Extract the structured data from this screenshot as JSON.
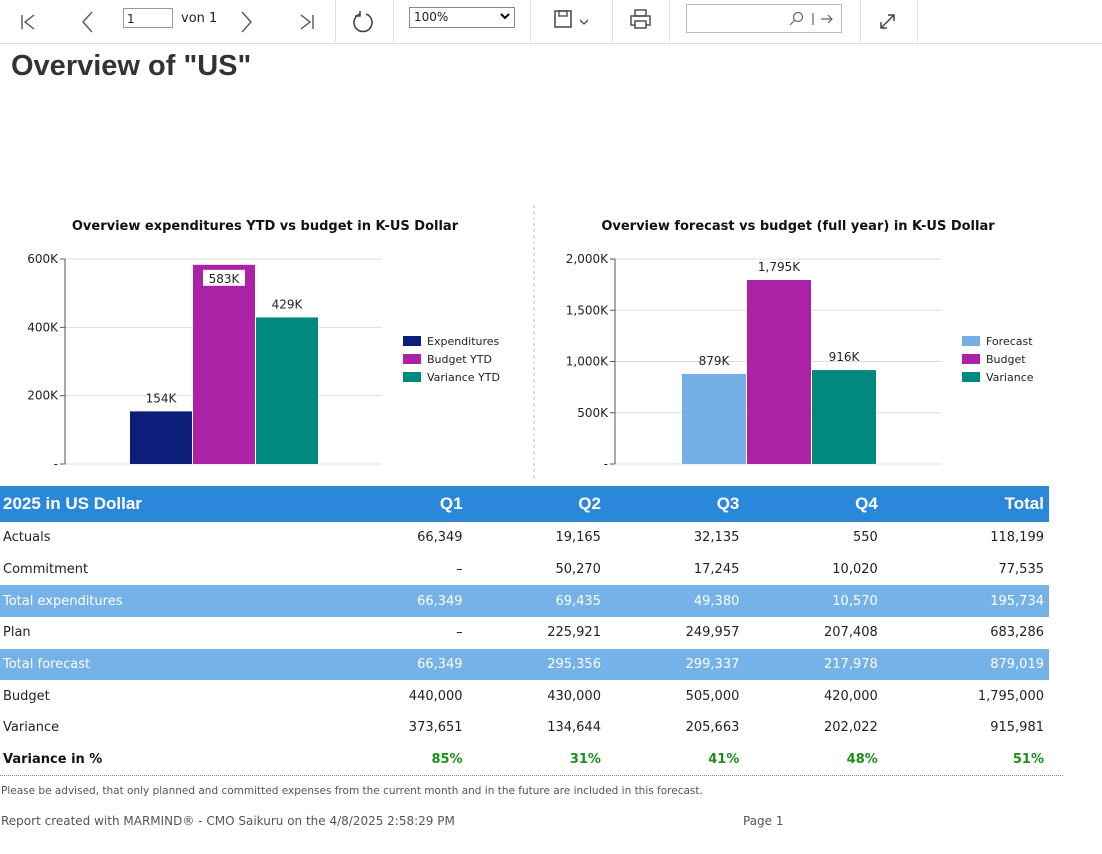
{
  "toolbar": {
    "page": "1",
    "page_count": "von 1",
    "zoom": "100%"
  },
  "report_title": "Overview of \"US\"",
  "chart_data": [
    {
      "type": "bar",
      "title": "Overview expenditures YTD vs budget in K-US Dollar",
      "ylim": [
        0,
        600
      ],
      "yticks": [
        {
          "value": 0,
          "label": "-"
        },
        {
          "value": 200,
          "label": "200K"
        },
        {
          "value": 400,
          "label": "400K"
        },
        {
          "value": 600,
          "label": "600K"
        }
      ],
      "grid": true,
      "legend": "right",
      "series": [
        {
          "name": "Expenditures",
          "color": "#0b1f7a",
          "values": [
            154
          ],
          "value_labels": [
            "154K"
          ]
        },
        {
          "name": "Budget YTD",
          "color": "#ab22a6",
          "values": [
            583
          ],
          "value_labels": [
            "583K"
          ]
        },
        {
          "name": "Variance YTD",
          "color": "#00897e",
          "values": [
            429
          ],
          "value_labels": [
            "429K"
          ]
        }
      ]
    },
    {
      "type": "bar",
      "title": "Overview forecast vs budget (full year) in K-US Dollar",
      "ylim": [
        0,
        2000
      ],
      "yticks": [
        {
          "value": 0,
          "label": "-"
        },
        {
          "value": 500,
          "label": "500K"
        },
        {
          "value": 1000,
          "label": "1,000K"
        },
        {
          "value": 1500,
          "label": "1,500K"
        },
        {
          "value": 2000,
          "label": "2,000K"
        }
      ],
      "grid": true,
      "legend": "right",
      "series": [
        {
          "name": "Forecast",
          "color": "#74b0e6",
          "values": [
            879
          ],
          "value_labels": [
            "879K"
          ]
        },
        {
          "name": "Budget",
          "color": "#ab22a6",
          "values": [
            1795
          ],
          "value_labels": [
            "1,795K"
          ]
        },
        {
          "name": "Variance",
          "color": "#00897e",
          "values": [
            916
          ],
          "value_labels": [
            "916K"
          ]
        }
      ]
    }
  ],
  "table": {
    "header": [
      "2025 in US Dollar",
      "Q1",
      "Q2",
      "Q3",
      "Q4",
      "Total"
    ],
    "rows": [
      [
        "Actuals",
        "66,349",
        "19,165",
        "32,135",
        "550",
        "118,199"
      ],
      [
        "Commitment",
        "–",
        "50,270",
        "17,245",
        "10,020",
        "77,535"
      ],
      [
        "Total expenditures",
        "66,349",
        "69,435",
        "49,380",
        "10,570",
        "195,734"
      ],
      [
        "Plan",
        "–",
        "225,921",
        "249,957",
        "207,408",
        "683,286"
      ],
      [
        "Total forecast",
        "66,349",
        "295,356",
        "299,337",
        "217,978",
        "879,019"
      ],
      [
        "Budget",
        "440,000",
        "430,000",
        "505,000",
        "420,000",
        "1,795,000"
      ],
      [
        "Variance",
        "373,651",
        "134,644",
        "205,663",
        "202,022",
        "915,981"
      ],
      [
        "Variance in %",
        "85%",
        "31%",
        "41%",
        "48%",
        "51%"
      ]
    ]
  },
  "note": "Please be advised, that only planned and committed expenses from the current month and in the future are included in this forecast.",
  "footer": "Report created with MARMIND® - CMO Saikuru on the 4/8/2025 2:58:29 PM",
  "page_label": "Page 1"
}
